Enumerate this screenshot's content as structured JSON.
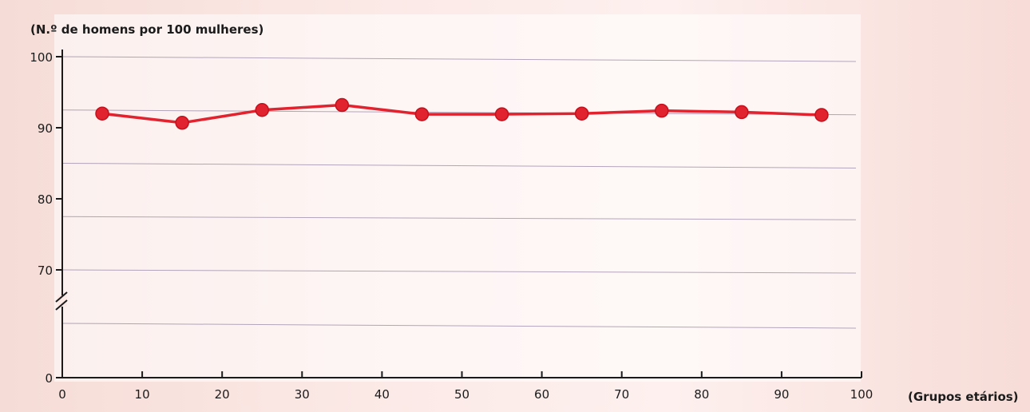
{
  "chart_data": {
    "type": "line",
    "title": "",
    "ylabel": "(N.º de homens por 100 mulheres)",
    "xlabel": "(Grupos etários)",
    "xlim": [
      0,
      100
    ],
    "ylim": [
      0,
      100
    ],
    "axis_break": true,
    "grid": true,
    "x_ticks": [
      0,
      10,
      20,
      30,
      40,
      50,
      60,
      70,
      80,
      90,
      100
    ],
    "y_ticks": [
      0,
      70,
      80,
      90,
      100
    ],
    "series": [
      {
        "color": "#e0232e",
        "x": [
          5,
          15,
          25,
          35,
          45,
          55,
          65,
          75,
          85,
          95
        ],
        "y": [
          92.0,
          90.7,
          92.5,
          93.2,
          91.9,
          91.9,
          92.0,
          92.4,
          92.2,
          91.8
        ]
      }
    ]
  }
}
